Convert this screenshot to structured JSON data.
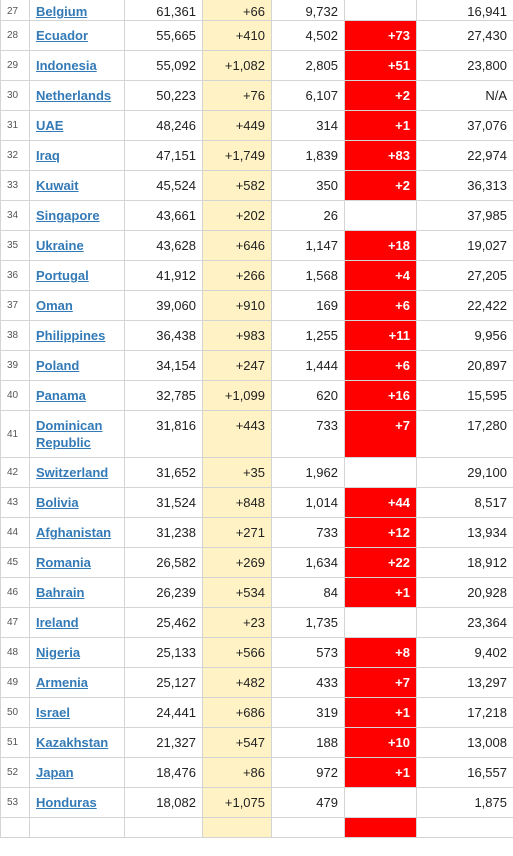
{
  "table": {
    "rows": [
      {
        "rank": "27",
        "country": "Belgium",
        "total": "61,361",
        "new_cases": "+66",
        "deaths": "9,732",
        "new_deaths": "",
        "recovered": "16,941"
      },
      {
        "rank": "28",
        "country": "Ecuador",
        "total": "55,665",
        "new_cases": "+410",
        "deaths": "4,502",
        "new_deaths": "+73",
        "recovered": "27,430"
      },
      {
        "rank": "29",
        "country": "Indonesia",
        "total": "55,092",
        "new_cases": "+1,082",
        "deaths": "2,805",
        "new_deaths": "+51",
        "recovered": "23,800"
      },
      {
        "rank": "30",
        "country": "Netherlands",
        "total": "50,223",
        "new_cases": "+76",
        "deaths": "6,107",
        "new_deaths": "+2",
        "recovered": "N/A"
      },
      {
        "rank": "31",
        "country": "UAE",
        "total": "48,246",
        "new_cases": "+449",
        "deaths": "314",
        "new_deaths": "+1",
        "recovered": "37,076"
      },
      {
        "rank": "32",
        "country": "Iraq",
        "total": "47,151",
        "new_cases": "+1,749",
        "deaths": "1,839",
        "new_deaths": "+83",
        "recovered": "22,974"
      },
      {
        "rank": "33",
        "country": "Kuwait",
        "total": "45,524",
        "new_cases": "+582",
        "deaths": "350",
        "new_deaths": "+2",
        "recovered": "36,313"
      },
      {
        "rank": "34",
        "country": "Singapore",
        "total": "43,661",
        "new_cases": "+202",
        "deaths": "26",
        "new_deaths": "",
        "recovered": "37,985"
      },
      {
        "rank": "35",
        "country": "Ukraine",
        "total": "43,628",
        "new_cases": "+646",
        "deaths": "1,147",
        "new_deaths": "+18",
        "recovered": "19,027"
      },
      {
        "rank": "36",
        "country": "Portugal",
        "total": "41,912",
        "new_cases": "+266",
        "deaths": "1,568",
        "new_deaths": "+4",
        "recovered": "27,205"
      },
      {
        "rank": "37",
        "country": "Oman",
        "total": "39,060",
        "new_cases": "+910",
        "deaths": "169",
        "new_deaths": "+6",
        "recovered": "22,422"
      },
      {
        "rank": "38",
        "country": "Philippines",
        "total": "36,438",
        "new_cases": "+983",
        "deaths": "1,255",
        "new_deaths": "+11",
        "recovered": "9,956"
      },
      {
        "rank": "39",
        "country": "Poland",
        "total": "34,154",
        "new_cases": "+247",
        "deaths": "1,444",
        "new_deaths": "+6",
        "recovered": "20,897"
      },
      {
        "rank": "40",
        "country": "Panama",
        "total": "32,785",
        "new_cases": "+1,099",
        "deaths": "620",
        "new_deaths": "+16",
        "recovered": "15,595"
      },
      {
        "rank": "41",
        "country": "Dominican Republic",
        "total": "31,816",
        "new_cases": "+443",
        "deaths": "733",
        "new_deaths": "+7",
        "recovered": "17,280"
      },
      {
        "rank": "42",
        "country": "Switzerland",
        "total": "31,652",
        "new_cases": "+35",
        "deaths": "1,962",
        "new_deaths": "",
        "recovered": "29,100"
      },
      {
        "rank": "43",
        "country": "Bolivia",
        "total": "31,524",
        "new_cases": "+848",
        "deaths": "1,014",
        "new_deaths": "+44",
        "recovered": "8,517"
      },
      {
        "rank": "44",
        "country": "Afghanistan",
        "total": "31,238",
        "new_cases": "+271",
        "deaths": "733",
        "new_deaths": "+12",
        "recovered": "13,934"
      },
      {
        "rank": "45",
        "country": "Romania",
        "total": "26,582",
        "new_cases": "+269",
        "deaths": "1,634",
        "new_deaths": "+22",
        "recovered": "18,912"
      },
      {
        "rank": "46",
        "country": "Bahrain",
        "total": "26,239",
        "new_cases": "+534",
        "deaths": "84",
        "new_deaths": "+1",
        "recovered": "20,928"
      },
      {
        "rank": "47",
        "country": "Ireland",
        "total": "25,462",
        "new_cases": "+23",
        "deaths": "1,735",
        "new_deaths": "",
        "recovered": "23,364"
      },
      {
        "rank": "48",
        "country": "Nigeria",
        "total": "25,133",
        "new_cases": "+566",
        "deaths": "573",
        "new_deaths": "+8",
        "recovered": "9,402"
      },
      {
        "rank": "49",
        "country": "Armenia",
        "total": "25,127",
        "new_cases": "+482",
        "deaths": "433",
        "new_deaths": "+7",
        "recovered": "13,297"
      },
      {
        "rank": "50",
        "country": "Israel",
        "total": "24,441",
        "new_cases": "+686",
        "deaths": "319",
        "new_deaths": "+1",
        "recovered": "17,218"
      },
      {
        "rank": "51",
        "country": "Kazakhstan",
        "total": "21,327",
        "new_cases": "+547",
        "deaths": "188",
        "new_deaths": "+10",
        "recovered": "13,008"
      },
      {
        "rank": "52",
        "country": "Japan",
        "total": "18,476",
        "new_cases": "+86",
        "deaths": "972",
        "new_deaths": "+1",
        "recovered": "16,557"
      },
      {
        "rank": "53",
        "country": "Honduras",
        "total": "18,082",
        "new_cases": "+1,075",
        "deaths": "479",
        "new_deaths": "",
        "recovered": "1,875"
      },
      {
        "rank": "",
        "country": "",
        "total": "",
        "new_cases": "",
        "deaths": "",
        "new_deaths": "",
        "recovered": "",
        "cut_highlight": true
      }
    ]
  },
  "colors": {
    "link": "#337ab7",
    "new_cases_bg": "#fff2c4",
    "new_deaths_bg": "#ff0000",
    "border": "#d4d4d4"
  }
}
